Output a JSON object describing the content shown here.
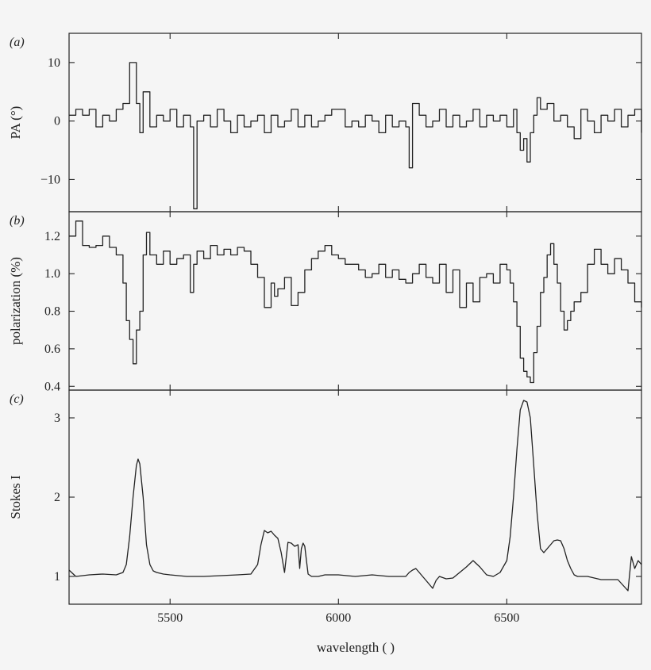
{
  "figure": {
    "xlabel": "wavelength (   )",
    "xlim": [
      5200,
      6900
    ],
    "xticks": [
      5500,
      6000,
      6500
    ]
  },
  "chart_data": [
    {
      "type": "line",
      "step": true,
      "panel_label": "(a)",
      "ylabel": "PA (°)",
      "ylim": [
        -15.5,
        15
      ],
      "yticks": [
        {
          "value": 10,
          "label": "10"
        },
        {
          "value": 0,
          "label": "0"
        },
        {
          "value": -10,
          "label": "−10"
        }
      ],
      "x": [
        5200,
        5220,
        5240,
        5260,
        5280,
        5300,
        5320,
        5340,
        5360,
        5380,
        5400,
        5410,
        5420,
        5440,
        5460,
        5480,
        5500,
        5520,
        5540,
        5560,
        5570,
        5580,
        5600,
        5620,
        5640,
        5660,
        5680,
        5700,
        5720,
        5740,
        5760,
        5780,
        5800,
        5820,
        5840,
        5860,
        5880,
        5900,
        5920,
        5940,
        5960,
        5980,
        6000,
        6020,
        6040,
        6060,
        6080,
        6100,
        6120,
        6140,
        6160,
        6180,
        6200,
        6210,
        6220,
        6240,
        6260,
        6280,
        6300,
        6320,
        6340,
        6360,
        6380,
        6400,
        6420,
        6440,
        6460,
        6480,
        6500,
        6520,
        6530,
        6540,
        6550,
        6560,
        6570,
        6580,
        6590,
        6600,
        6620,
        6640,
        6660,
        6680,
        6700,
        6720,
        6740,
        6760,
        6780,
        6800,
        6820,
        6840,
        6860,
        6880,
        6900
      ],
      "y": [
        1,
        2,
        1,
        2,
        -1,
        1,
        0,
        2,
        3,
        10,
        3,
        -2,
        5,
        -1,
        1,
        0,
        2,
        -1,
        1,
        -1,
        -15,
        0,
        1,
        -1,
        2,
        0,
        -2,
        1,
        -1,
        0,
        1,
        -2,
        1,
        -1,
        0,
        2,
        -1,
        1,
        -1,
        0,
        1,
        2,
        2,
        -1,
        0,
        -1,
        1,
        0,
        -2,
        1,
        -1,
        0,
        -1,
        -8,
        3,
        1,
        -1,
        0,
        2,
        -1,
        1,
        -1,
        0,
        2,
        -1,
        1,
        0,
        1,
        -1,
        2,
        -2,
        -5,
        -3,
        -7,
        -2,
        1,
        4,
        2,
        3,
        0,
        1,
        -1,
        -3,
        2,
        0,
        -2,
        1,
        0,
        2,
        -1,
        1,
        2,
        -2
      ]
    },
    {
      "type": "line",
      "step": true,
      "panel_label": "(b)",
      "ylabel": "polarization (%)",
      "ylim": [
        0.38,
        1.33
      ],
      "yticks": [
        {
          "value": 1.2,
          "label": "1.2"
        },
        {
          "value": 1.0,
          "label": "1.0"
        },
        {
          "value": 0.8,
          "label": "0.8"
        },
        {
          "value": 0.6,
          "label": "0.6"
        },
        {
          "value": 0.4,
          "label": "0.4"
        }
      ],
      "x": [
        5200,
        5220,
        5240,
        5260,
        5280,
        5300,
        5320,
        5340,
        5360,
        5370,
        5380,
        5390,
        5400,
        5410,
        5420,
        5430,
        5440,
        5460,
        5480,
        5500,
        5520,
        5540,
        5560,
        5570,
        5580,
        5600,
        5620,
        5640,
        5660,
        5680,
        5700,
        5720,
        5740,
        5760,
        5780,
        5800,
        5810,
        5820,
        5840,
        5860,
        5880,
        5900,
        5920,
        5940,
        5960,
        5980,
        6000,
        6020,
        6040,
        6060,
        6080,
        6100,
        6120,
        6140,
        6160,
        6180,
        6200,
        6220,
        6240,
        6260,
        6280,
        6300,
        6320,
        6340,
        6360,
        6380,
        6400,
        6420,
        6440,
        6460,
        6480,
        6500,
        6510,
        6520,
        6530,
        6540,
        6550,
        6560,
        6570,
        6580,
        6590,
        6600,
        6610,
        6620,
        6630,
        6640,
        6650,
        6660,
        6670,
        6680,
        6690,
        6700,
        6720,
        6740,
        6760,
        6780,
        6800,
        6820,
        6840,
        6860,
        6880,
        6900
      ],
      "y": [
        1.2,
        1.28,
        1.15,
        1.14,
        1.15,
        1.2,
        1.14,
        1.1,
        0.95,
        0.75,
        0.65,
        0.52,
        0.7,
        0.8,
        1.1,
        1.22,
        1.1,
        1.05,
        1.12,
        1.05,
        1.08,
        1.1,
        0.9,
        1.05,
        1.12,
        1.08,
        1.15,
        1.1,
        1.13,
        1.1,
        1.14,
        1.12,
        1.05,
        0.98,
        0.82,
        0.95,
        0.88,
        0.92,
        0.98,
        0.83,
        0.9,
        1.02,
        1.08,
        1.12,
        1.15,
        1.1,
        1.08,
        1.05,
        1.05,
        1.02,
        0.98,
        1.0,
        1.05,
        0.98,
        1.02,
        0.97,
        0.95,
        1.0,
        1.05,
        0.98,
        0.95,
        1.05,
        0.9,
        1.02,
        0.82,
        0.95,
        0.85,
        0.98,
        1.0,
        0.95,
        1.05,
        1.02,
        0.95,
        0.85,
        0.72,
        0.55,
        0.48,
        0.45,
        0.42,
        0.58,
        0.72,
        0.9,
        0.98,
        1.1,
        1.16,
        1.05,
        0.95,
        0.8,
        0.7,
        0.75,
        0.8,
        0.85,
        0.9,
        1.05,
        1.13,
        1.05,
        1.0,
        1.08,
        1.02,
        0.95,
        0.85,
        0.82
      ]
    },
    {
      "type": "line",
      "panel_label": "(c)",
      "ylabel": "Stokes I",
      "ylim": [
        0.65,
        3.35
      ],
      "yticks": [
        {
          "value": 3,
          "label": "3"
        },
        {
          "value": 2,
          "label": "2"
        },
        {
          "value": 1,
          "label": "1"
        }
      ],
      "x": [
        5200,
        5220,
        5260,
        5300,
        5340,
        5360,
        5370,
        5380,
        5390,
        5400,
        5405,
        5410,
        5420,
        5430,
        5440,
        5450,
        5460,
        5480,
        5500,
        5550,
        5600,
        5650,
        5700,
        5740,
        5760,
        5770,
        5780,
        5790,
        5800,
        5810,
        5820,
        5830,
        5840,
        5850,
        5860,
        5870,
        5880,
        5885,
        5890,
        5895,
        5900,
        5905,
        5910,
        5920,
        5940,
        5960,
        6000,
        6050,
        6100,
        6150,
        6200,
        6210,
        6220,
        6230,
        6240,
        6250,
        6260,
        6270,
        6280,
        6290,
        6300,
        6320,
        6340,
        6360,
        6380,
        6400,
        6420,
        6440,
        6460,
        6480,
        6500,
        6510,
        6520,
        6530,
        6540,
        6550,
        6560,
        6570,
        6580,
        6590,
        6600,
        6610,
        6620,
        6630,
        6640,
        6650,
        6660,
        6670,
        6680,
        6690,
        6700,
        6710,
        6720,
        6730,
        6740,
        6760,
        6780,
        6830,
        6860,
        6870,
        6880,
        6890,
        6900
      ],
      "y": [
        1.08,
        1.0,
        1.02,
        1.03,
        1.02,
        1.05,
        1.15,
        1.5,
        2.0,
        2.4,
        2.48,
        2.42,
        2.0,
        1.4,
        1.15,
        1.07,
        1.05,
        1.03,
        1.02,
        1.0,
        1.0,
        1.01,
        1.02,
        1.03,
        1.15,
        1.4,
        1.58,
        1.55,
        1.57,
        1.52,
        1.48,
        1.3,
        1.05,
        1.43,
        1.42,
        1.38,
        1.4,
        1.1,
        1.35,
        1.42,
        1.38,
        1.2,
        1.03,
        1.0,
        1.0,
        1.02,
        1.02,
        1.0,
        1.02,
        1.0,
        1.0,
        1.05,
        1.08,
        1.1,
        1.05,
        1.0,
        0.95,
        0.9,
        0.85,
        0.95,
        1.0,
        0.97,
        0.98,
        1.05,
        1.12,
        1.2,
        1.12,
        1.02,
        1.0,
        1.05,
        1.2,
        1.5,
        2.0,
        2.6,
        3.1,
        3.22,
        3.2,
        3.0,
        2.4,
        1.8,
        1.35,
        1.3,
        1.35,
        1.4,
        1.45,
        1.46,
        1.45,
        1.35,
        1.2,
        1.1,
        1.02,
        1.0,
        1.0,
        1.0,
        1.0,
        0.98,
        0.96,
        0.96,
        0.82,
        1.25,
        1.1,
        1.2,
        1.15
      ]
    }
  ]
}
